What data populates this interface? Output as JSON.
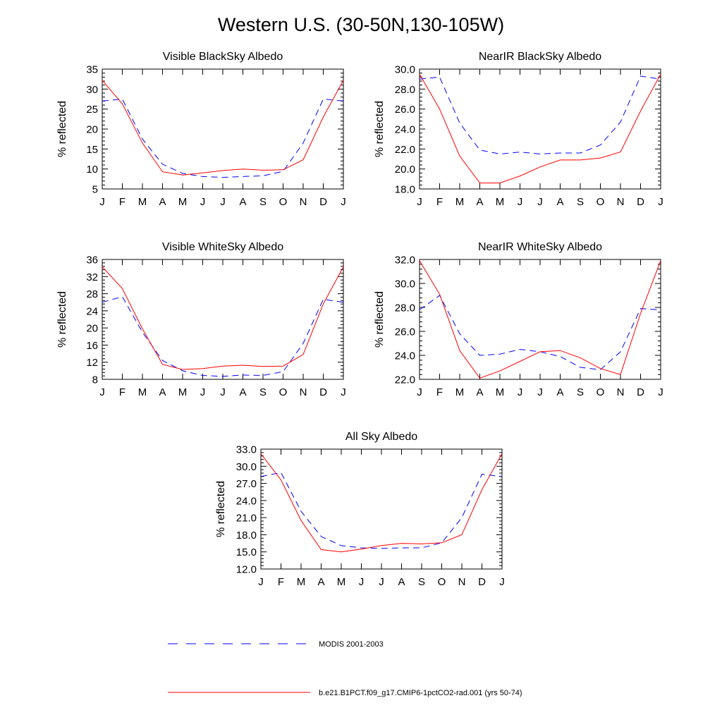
{
  "title": "Western U.S. (30-50N,130-105W)",
  "colors": {
    "modis": "#0000ff",
    "model": "#ff0000",
    "axis": "#000000"
  },
  "legend": {
    "position": "bottom",
    "items": [
      {
        "label": "MODIS 2001-2003",
        "color": "#0000ff",
        "style": "dashed"
      },
      {
        "label": "b.e21.B1PCT.f09_g17.CMIP6-1pctCO2-rad.001 (yrs 50-74)",
        "color": "#ff0000",
        "style": "solid"
      }
    ]
  },
  "chart_data": [
    {
      "type": "line",
      "title": "Visible BlackSky Albedo",
      "ylabel": "% reflected",
      "x": [
        "J",
        "F",
        "M",
        "A",
        "M",
        "J",
        "J",
        "A",
        "S",
        "O",
        "N",
        "D",
        "J"
      ],
      "ylim": [
        5,
        35
      ],
      "yticks": [
        "5",
        "10",
        "15",
        "20",
        "25",
        "30",
        "35"
      ],
      "series": [
        {
          "name": "MODIS 2001-2003",
          "values": [
            27.0,
            27.5,
            17.5,
            11.2,
            8.9,
            8.1,
            7.9,
            8.1,
            8.3,
            9.4,
            16.5,
            27.5,
            27.0
          ]
        },
        {
          "name": "b.e21.B1PCT.f09_g17.CMIP6-1pctCO2-rad.001 (yrs 50-74)",
          "values": [
            32.2,
            26.3,
            16.5,
            9.3,
            8.5,
            9.0,
            9.6,
            10.0,
            9.7,
            9.8,
            12.3,
            23.0,
            32.2
          ]
        }
      ]
    },
    {
      "type": "line",
      "title": "NearIR BlackSky Albedo",
      "ylabel": "% reflected",
      "x": [
        "J",
        "F",
        "M",
        "A",
        "M",
        "J",
        "J",
        "A",
        "S",
        "O",
        "N",
        "D",
        "J"
      ],
      "ylim": [
        18,
        30
      ],
      "yticks": [
        "18.0",
        "20.0",
        "22.0",
        "24.0",
        "26.0",
        "28.0",
        "30.0"
      ],
      "series": [
        {
          "name": "MODIS 2001-2003",
          "values": [
            29.0,
            29.2,
            24.6,
            21.9,
            21.5,
            21.7,
            21.5,
            21.6,
            21.6,
            22.4,
            24.7,
            29.3,
            29.0
          ]
        },
        {
          "name": "b.e21.B1PCT.f09_g17.CMIP6-1pctCO2-rad.001 (yrs 50-74)",
          "values": [
            29.5,
            26.0,
            21.3,
            18.6,
            18.6,
            19.3,
            20.2,
            20.9,
            20.9,
            21.1,
            21.7,
            25.8,
            29.5
          ]
        }
      ]
    },
    {
      "type": "line",
      "title": "Visible WhiteSky Albedo",
      "ylabel": "% reflected",
      "x": [
        "J",
        "F",
        "M",
        "A",
        "M",
        "J",
        "J",
        "A",
        "S",
        "O",
        "N",
        "D",
        "J"
      ],
      "ylim": [
        8,
        36
      ],
      "yticks": [
        "8",
        "12",
        "16",
        "20",
        "24",
        "28",
        "32",
        "36"
      ],
      "series": [
        {
          "name": "MODIS 2001-2003",
          "values": [
            26.0,
            27.3,
            19.0,
            12.4,
            10.0,
            8.9,
            8.7,
            9.0,
            8.9,
            9.8,
            16.4,
            26.7,
            26.0
          ]
        },
        {
          "name": "b.e21.B1PCT.f09_g17.CMIP6-1pctCO2-rad.001 (yrs 50-74)",
          "values": [
            34.3,
            29.2,
            19.8,
            11.5,
            10.3,
            10.5,
            11.1,
            11.3,
            11.0,
            11.1,
            13.8,
            25.6,
            34.3
          ]
        }
      ]
    },
    {
      "type": "line",
      "title": "NearIR WhiteSky Albedo",
      "ylabel": "% reflected",
      "x": [
        "J",
        "F",
        "M",
        "A",
        "M",
        "J",
        "J",
        "A",
        "S",
        "O",
        "N",
        "D",
        "J"
      ],
      "ylim": [
        22,
        32
      ],
      "yticks": [
        "22.0",
        "24.0",
        "26.0",
        "28.0",
        "30.0",
        "32.0"
      ],
      "series": [
        {
          "name": "MODIS 2001-2003",
          "values": [
            27.8,
            29.0,
            25.8,
            24.0,
            24.1,
            24.5,
            24.3,
            23.9,
            23.0,
            22.8,
            24.3,
            27.9,
            27.8
          ]
        },
        {
          "name": "b.e21.B1PCT.f09_g17.CMIP6-1pctCO2-rad.001 (yrs 50-74)",
          "values": [
            31.9,
            29.1,
            24.4,
            22.1,
            22.7,
            23.5,
            24.3,
            24.4,
            23.8,
            22.9,
            22.4,
            27.5,
            31.9
          ]
        }
      ]
    },
    {
      "type": "line",
      "title": "All Sky Albedo",
      "ylabel": "% reflected",
      "x": [
        "J",
        "F",
        "M",
        "A",
        "M",
        "J",
        "J",
        "A",
        "S",
        "O",
        "N",
        "D",
        "J"
      ],
      "ylim": [
        12,
        33
      ],
      "yticks": [
        "12.0",
        "15.0",
        "18.0",
        "21.0",
        "24.0",
        "27.0",
        "30.0",
        "33.0"
      ],
      "series": [
        {
          "name": "MODIS 2001-2003",
          "values": [
            28.2,
            28.9,
            22.1,
            17.7,
            16.1,
            15.7,
            15.6,
            15.7,
            15.7,
            16.6,
            21.0,
            28.6,
            28.2
          ]
        },
        {
          "name": "b.e21.B1PCT.f09_g17.CMIP6-1pctCO2-rad.001 (yrs 50-74)",
          "values": [
            32.2,
            27.6,
            20.5,
            15.4,
            15.0,
            15.5,
            16.1,
            16.5,
            16.4,
            16.6,
            18.0,
            25.9,
            32.2
          ]
        }
      ]
    }
  ]
}
